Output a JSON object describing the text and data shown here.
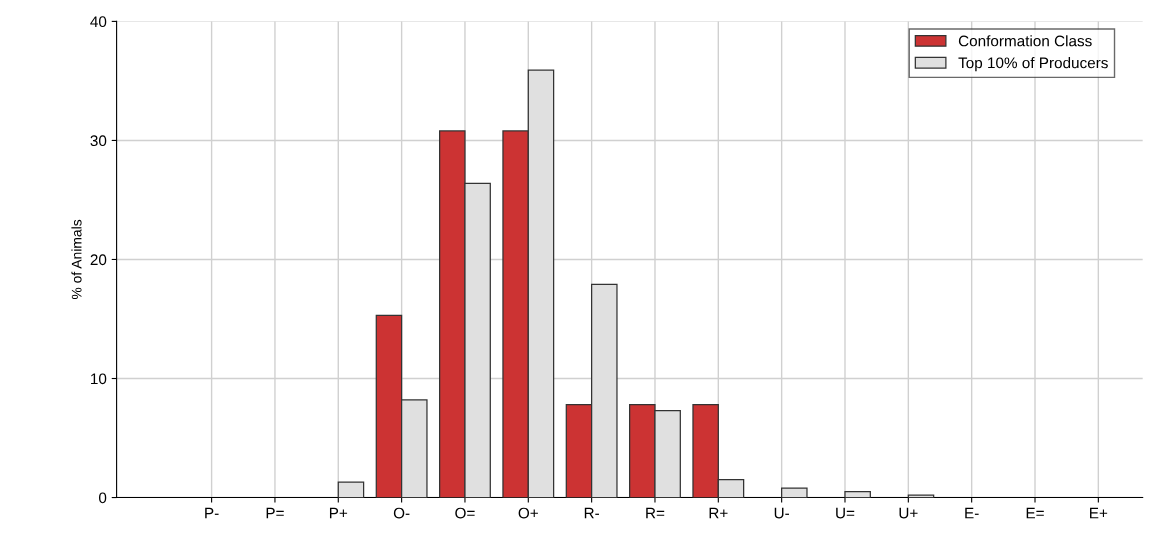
{
  "chart_data": {
    "type": "bar",
    "ylabel": "% of Animals",
    "categories": [
      "P-",
      "P=",
      "P+",
      "O-",
      "O=",
      "O+",
      "R-",
      "R=",
      "R+",
      "U-",
      "U=",
      "U+",
      "E-",
      "E=",
      "E+"
    ],
    "series": [
      {
        "name": "Conformation Class",
        "color": "#cc3333",
        "values": [
          null,
          null,
          null,
          15.3,
          30.8,
          30.8,
          7.8,
          7.8,
          7.8,
          null,
          null,
          null,
          null,
          null,
          null
        ]
      },
      {
        "name": "Top 10% of Producers",
        "color": "#e0e0e0",
        "values": [
          null,
          null,
          1.3,
          8.2,
          26.4,
          35.9,
          17.9,
          7.3,
          1.5,
          0.8,
          0.5,
          0.2,
          null,
          null,
          null
        ]
      }
    ],
    "ylim": [
      0,
      40
    ],
    "yticks": [
      0,
      10,
      20,
      30,
      40
    ],
    "grid": true,
    "legend": "top right"
  }
}
